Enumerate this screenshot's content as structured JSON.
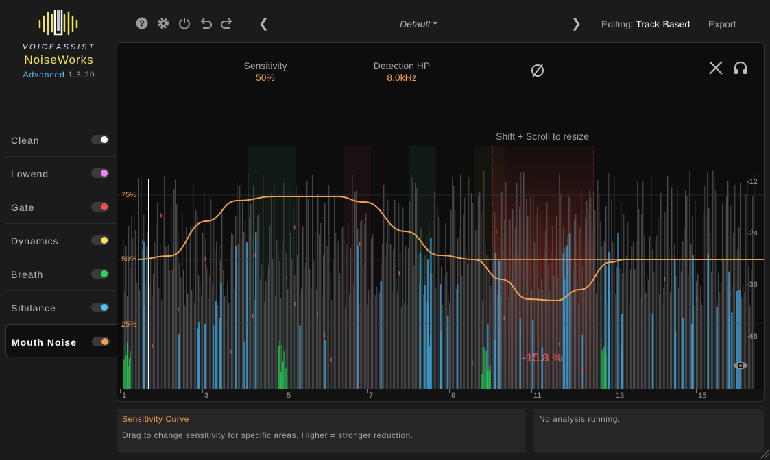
{
  "brand": {
    "line1": "VOICEASSIST",
    "name": "NoiseWorks",
    "edition": "Advanced",
    "version": "1.3.20"
  },
  "sidebar": {
    "items": [
      {
        "label": "Clean",
        "color": "#ffffff",
        "active": false
      },
      {
        "label": "Lowend",
        "color": "#ee82ee",
        "active": false
      },
      {
        "label": "Gate",
        "color": "#ff4d4d",
        "active": false
      },
      {
        "label": "Dynamics",
        "color": "#f2e25e",
        "active": false
      },
      {
        "label": "Breath",
        "color": "#22dd55",
        "active": false
      },
      {
        "label": "Sibilance",
        "color": "#4fc3f7",
        "active": false
      },
      {
        "label": "Mouth Noise",
        "color": "#f0a050",
        "active": true
      }
    ]
  },
  "toolbar": {
    "icons": [
      "help-icon",
      "gear-icon",
      "power-icon",
      "undo-icon",
      "redo-icon"
    ],
    "preset": "Default *",
    "editing_label": "Editing:",
    "editing_value": "Track-Based",
    "export_label": "Export"
  },
  "params": {
    "sensitivity": {
      "label": "Sensitivity",
      "value": "50%"
    },
    "detection": {
      "label": "Detection HP",
      "value": "8.0kHz"
    }
  },
  "display": {
    "hint": "Shift + Scroll to resize",
    "reduction": "-15.8 %",
    "y_labels": [
      "75%",
      "50%",
      "25%"
    ],
    "db_labels": [
      "-12",
      "-24",
      "-36",
      "-48"
    ],
    "ruler": [
      "1",
      "3",
      "5",
      "7",
      "9",
      "11",
      "13",
      "15"
    ],
    "accent": "#f0a050"
  },
  "info": {
    "title": "Sensitivity Curve",
    "desc": "Drag to change sensitivity for specific areas. Higher = stronger reduction.",
    "status": "No analysis running."
  }
}
